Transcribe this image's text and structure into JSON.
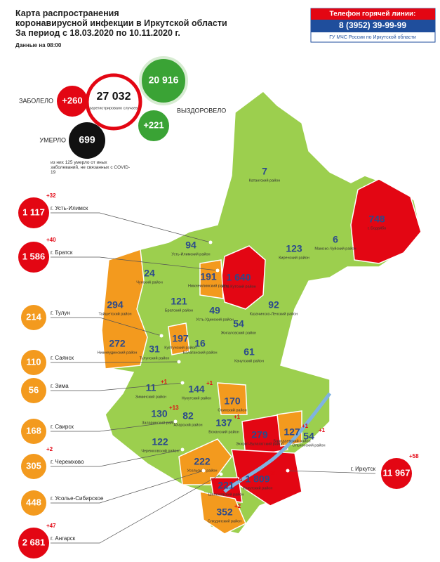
{
  "header": {
    "title_lines": [
      "Карта распространения",
      "коронавирусной инфекции в Иркутской области",
      "За период с 18.03.2020 по 10.11.2020 г."
    ],
    "data_time": "Данные на 08:00"
  },
  "hotline": {
    "title": "Телефон горячей линии:",
    "phone": "8 (3952) 39-99-99",
    "org": "ГУ МЧС России по Иркутской области"
  },
  "stats": {
    "infected_label": "ЗАБОЛЕЛО",
    "infected_delta": "+260",
    "total": "27 032",
    "total_caption": "зарегистрировано случаев",
    "recovered": "20 916",
    "recovered_label": "ВЫЗДОРОВЕЛО",
    "recovered_delta": "+221",
    "deaths_label": "УМЕРЛО",
    "deaths": "699",
    "deaths_note": "из них 125 умерло от иных заболеваний, не связанных с COVID-19"
  },
  "cities": [
    {
      "value": "1 117",
      "delta": "+32",
      "name": "г. Усть-Илимск",
      "color": "#e30613"
    },
    {
      "value": "1 586",
      "delta": "+40",
      "name": "г. Братск",
      "color": "#e30613"
    },
    {
      "value": "214",
      "name": "г. Тулун",
      "color": "#f39a1e"
    },
    {
      "value": "110",
      "name": "г. Саянск",
      "color": "#f39a1e"
    },
    {
      "value": "56",
      "name": "г. Зима",
      "color": "#f39a1e"
    },
    {
      "value": "168",
      "name": "г. Свирск",
      "color": "#f39a1e"
    },
    {
      "value": "305",
      "delta": "+2",
      "name": "г. Черемхово",
      "color": "#f39a1e"
    },
    {
      "value": "448",
      "name": "г. Усолье-Сибирское",
      "color": "#f39a1e"
    },
    {
      "value": "2 681",
      "delta": "+47",
      "name": "г. Ангарск",
      "color": "#e30613"
    },
    {
      "value": "11 967",
      "delta": "+58",
      "name": "г. Иркутск",
      "color": "#e30613"
    }
  ],
  "districts": [
    {
      "value": "7",
      "name": "Катангский район"
    },
    {
      "value": "748",
      "name": "г. Бодайбо"
    },
    {
      "value": "6",
      "name": "Мамско-Чуйский район"
    },
    {
      "value": "123",
      "name": "Киренский район"
    },
    {
      "value": "94",
      "name": "Усть-Илимский район"
    },
    {
      "value": "191",
      "name": "Нижнеилимский район"
    },
    {
      "value": "1 640",
      "delta": "+15",
      "name": "Усть-Кутский район"
    },
    {
      "value": "24",
      "name": "Чунский район"
    },
    {
      "value": "121",
      "name": "Братский район"
    },
    {
      "value": "49",
      "name": "Усть-Удинский район"
    },
    {
      "value": "92",
      "name": "Казачинско-Ленский район"
    },
    {
      "value": "294",
      "name": "Тайшетский район"
    },
    {
      "value": "54",
      "name": "Жигаловский район"
    },
    {
      "value": "272",
      "name": "Нижнеудинский район"
    },
    {
      "value": "197",
      "name": "Куйтунский район"
    },
    {
      "value": "16",
      "name": "Балаганский район"
    },
    {
      "value": "31",
      "name": "Тулунский район"
    },
    {
      "value": "61",
      "name": "Качугский район"
    },
    {
      "value": "11",
      "delta": "+1",
      "name": "Зиминский район"
    },
    {
      "value": "144",
      "delta": "+1",
      "name": "Нукутский район"
    },
    {
      "value": "170",
      "name": "Осинский район"
    },
    {
      "value": "130",
      "delta": "+13",
      "name": "Заларинский район"
    },
    {
      "value": "82",
      "name": "Аларский район"
    },
    {
      "value": "137",
      "delta": "+1",
      "name": "Боханский район"
    },
    {
      "value": "279",
      "delta": "+7",
      "name": "Эхирит-Булагатский район"
    },
    {
      "value": "127",
      "delta": "+1",
      "name": "Баяндаевский район"
    },
    {
      "value": "54",
      "delta": "+1",
      "name": "Ольхонский район"
    },
    {
      "value": "122",
      "name": "Черемховский район"
    },
    {
      "value": "222",
      "name": "Усольский район"
    },
    {
      "value": "1 809",
      "delta": "+31",
      "name": "Иркутский район"
    },
    {
      "value": "221",
      "delta": "+4",
      "name": "Шелеховский район"
    },
    {
      "value": "352",
      "delta": "+2",
      "name": "Слюдянский район"
    }
  ]
}
